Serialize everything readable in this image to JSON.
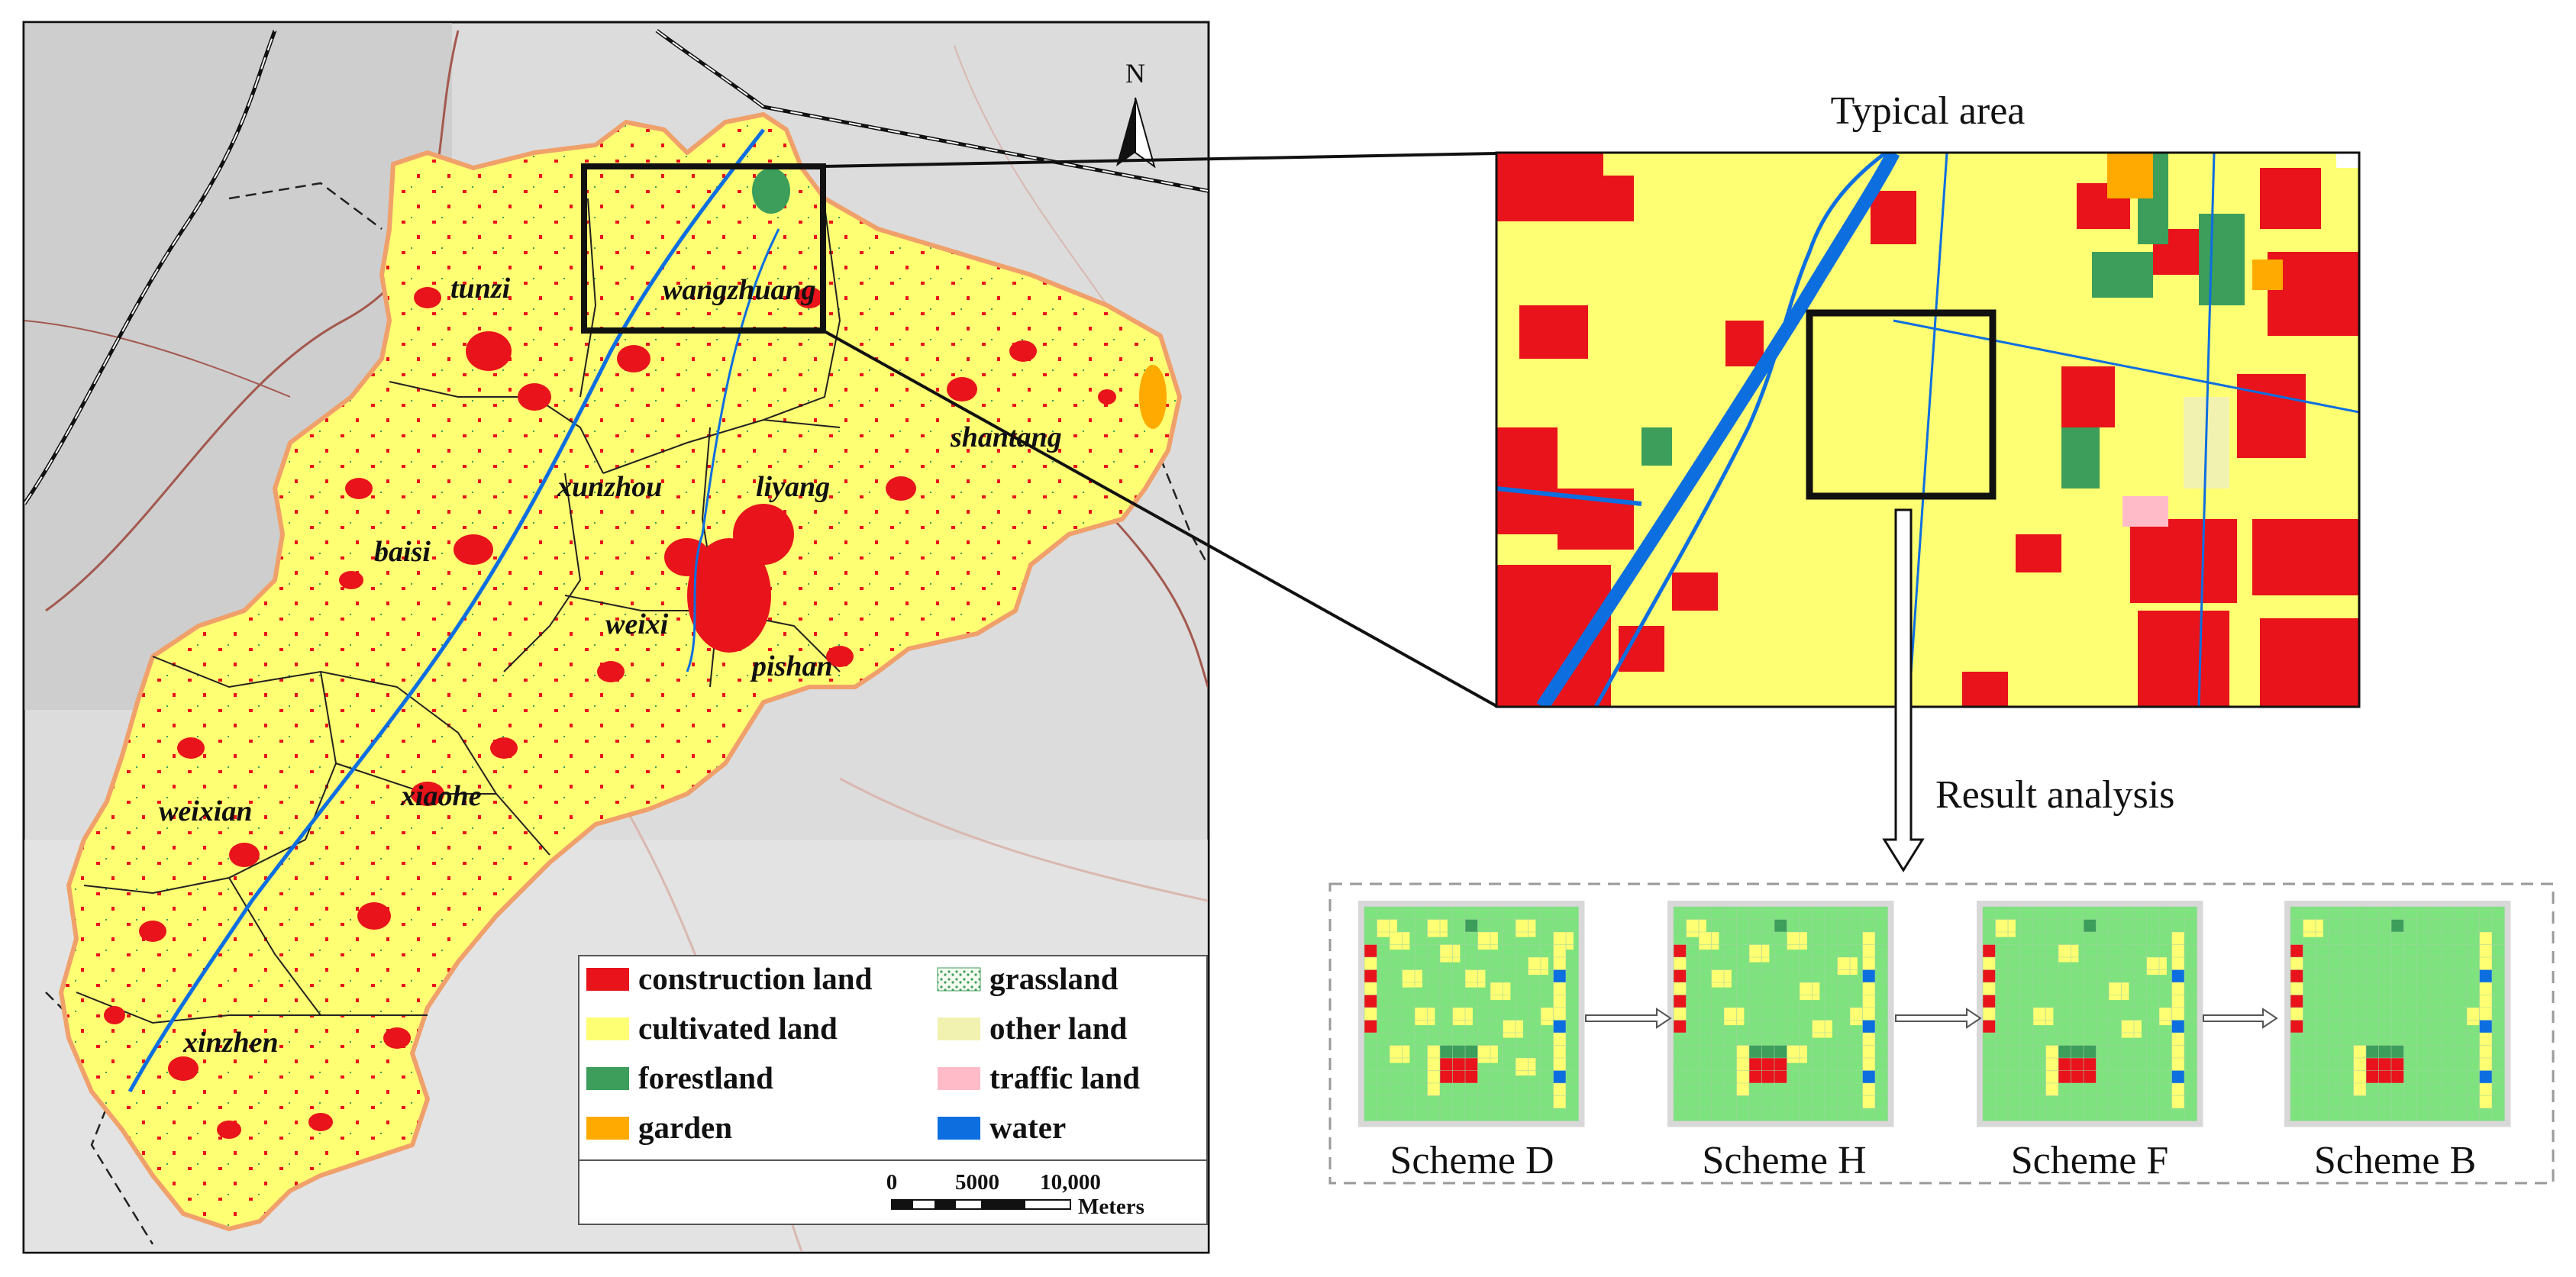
{
  "map": {
    "north_label": "N",
    "towns": [
      "tunzi",
      "wangzhuang",
      "shantang",
      "xunzhou",
      "liyang",
      "baisi",
      "weixi",
      "pishan",
      "weixian",
      "xiaohe",
      "xinzhen"
    ],
    "legend": {
      "items": [
        {
          "label": "construction land",
          "color": "#e8131b",
          "symbol": "fill"
        },
        {
          "label": "cultivated land",
          "color": "#ffff73",
          "symbol": "fill"
        },
        {
          "label": "forestland",
          "color": "#3c9e5a",
          "symbol": "fill"
        },
        {
          "label": "garden",
          "color": "#ffaa00",
          "symbol": "fill"
        },
        {
          "label": "grassland",
          "color": "#d9f2d0",
          "symbol": "dots"
        },
        {
          "label": "other land",
          "color": "#f2f2b0",
          "symbol": "fill"
        },
        {
          "label": "traffic land",
          "color": "#ffbcc8",
          "symbol": "fill"
        },
        {
          "label": "water",
          "color": "#0d6ee0",
          "symbol": "fill"
        }
      ],
      "scale": {
        "ticks": [
          "0",
          "5000",
          "10,000"
        ],
        "unit": "Meters"
      }
    }
  },
  "inset": {
    "title": "Typical area",
    "arrow_label": "Result analysis"
  },
  "schemes": [
    "Scheme D",
    "Scheme H",
    "Scheme F",
    "Scheme B"
  ],
  "colors": {
    "construction": "#e8131b",
    "cultivated": "#ffff73",
    "forest": "#3c9e5a",
    "garden": "#ffaa00",
    "grassland": "#7ee27e",
    "water": "#0d6ee0",
    "background": "#d8d8d8"
  }
}
